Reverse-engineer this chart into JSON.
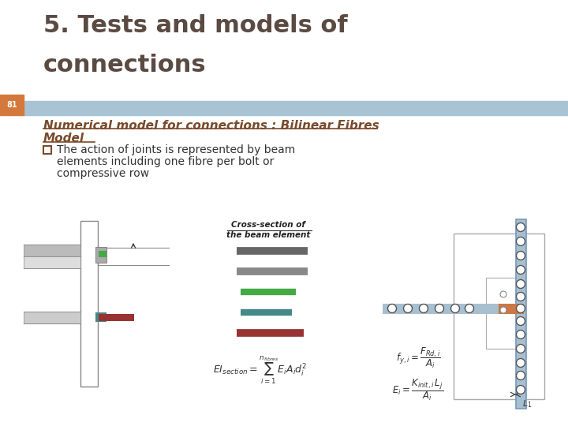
{
  "title_line1": "5. Tests and models of",
  "title_line2": "connections",
  "slide_number": "81",
  "slide_number_bg": "#d4793b",
  "header_bar_color": "#a8c4d4",
  "title_color": "#5a4a42",
  "subtitle_color": "#7a4a2a",
  "bullet_color": "#333333",
  "bg_color": "#ffffff",
  "beam_color": "#a8bfd0",
  "bolt_color": "#cc7744",
  "column_color": "#a8bfd0",
  "green_color": "#44aa44",
  "teal_color": "#448888",
  "red_color": "#993333"
}
